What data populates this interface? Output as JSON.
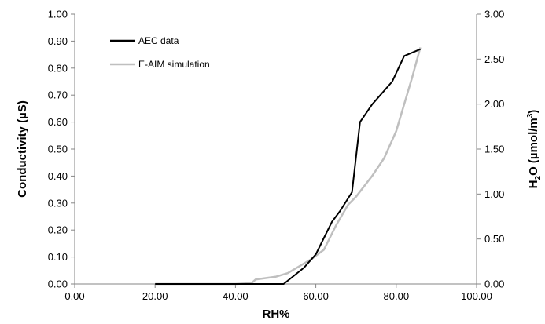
{
  "chart_data": {
    "type": "line",
    "xlabel": "RH%",
    "ylabel": "Conductivity (µS)",
    "y2label_parts": {
      "h": "H",
      "sub": "2",
      "o_unit": "O (µmol/m",
      "sup": "3",
      "close": ")"
    },
    "xlim": [
      0,
      100
    ],
    "ylim": [
      0,
      1.0
    ],
    "y2lim": [
      0,
      3.0
    ],
    "x_ticks": [
      "0.00",
      "20.00",
      "40.00",
      "60.00",
      "80.00",
      "100.00"
    ],
    "y_ticks": [
      "0.00",
      "0.10",
      "0.20",
      "0.30",
      "0.40",
      "0.50",
      "0.60",
      "0.70",
      "0.80",
      "0.90",
      "1.00"
    ],
    "y2_ticks": [
      "0.00",
      "0.50",
      "1.00",
      "1.50",
      "2.00",
      "2.50",
      "3.00"
    ],
    "grid": false,
    "legend_position": "top-left",
    "series": [
      {
        "name": "AEC data",
        "axis": "left",
        "color": "#000000",
        "x": [
          20.0,
          45.0,
          52.0,
          57.0,
          60.0,
          62.0,
          64.0,
          66.0,
          69.0,
          71.0,
          74.0,
          79.0,
          82.0,
          86.0
        ],
        "y": [
          0.0,
          0.0,
          0.0,
          0.06,
          0.11,
          0.17,
          0.23,
          0.27,
          0.34,
          0.6,
          0.665,
          0.75,
          0.845,
          0.87
        ]
      },
      {
        "name": "E-AIM simulation",
        "axis": "right",
        "color": "#bfbfbf",
        "x": [
          20.0,
          40.0,
          44.0,
          45.0,
          50.0,
          53.0,
          56.0,
          59.0,
          62.0,
          65.0,
          68.0,
          70.0,
          74.0,
          77.0,
          80.0,
          82.0,
          84.0,
          86.0
        ],
        "y": [
          0.0,
          0.0,
          0.01,
          0.05,
          0.08,
          0.12,
          0.2,
          0.28,
          0.38,
          0.65,
          0.88,
          0.97,
          1.2,
          1.4,
          1.7,
          2.0,
          2.3,
          2.63
        ]
      }
    ]
  }
}
